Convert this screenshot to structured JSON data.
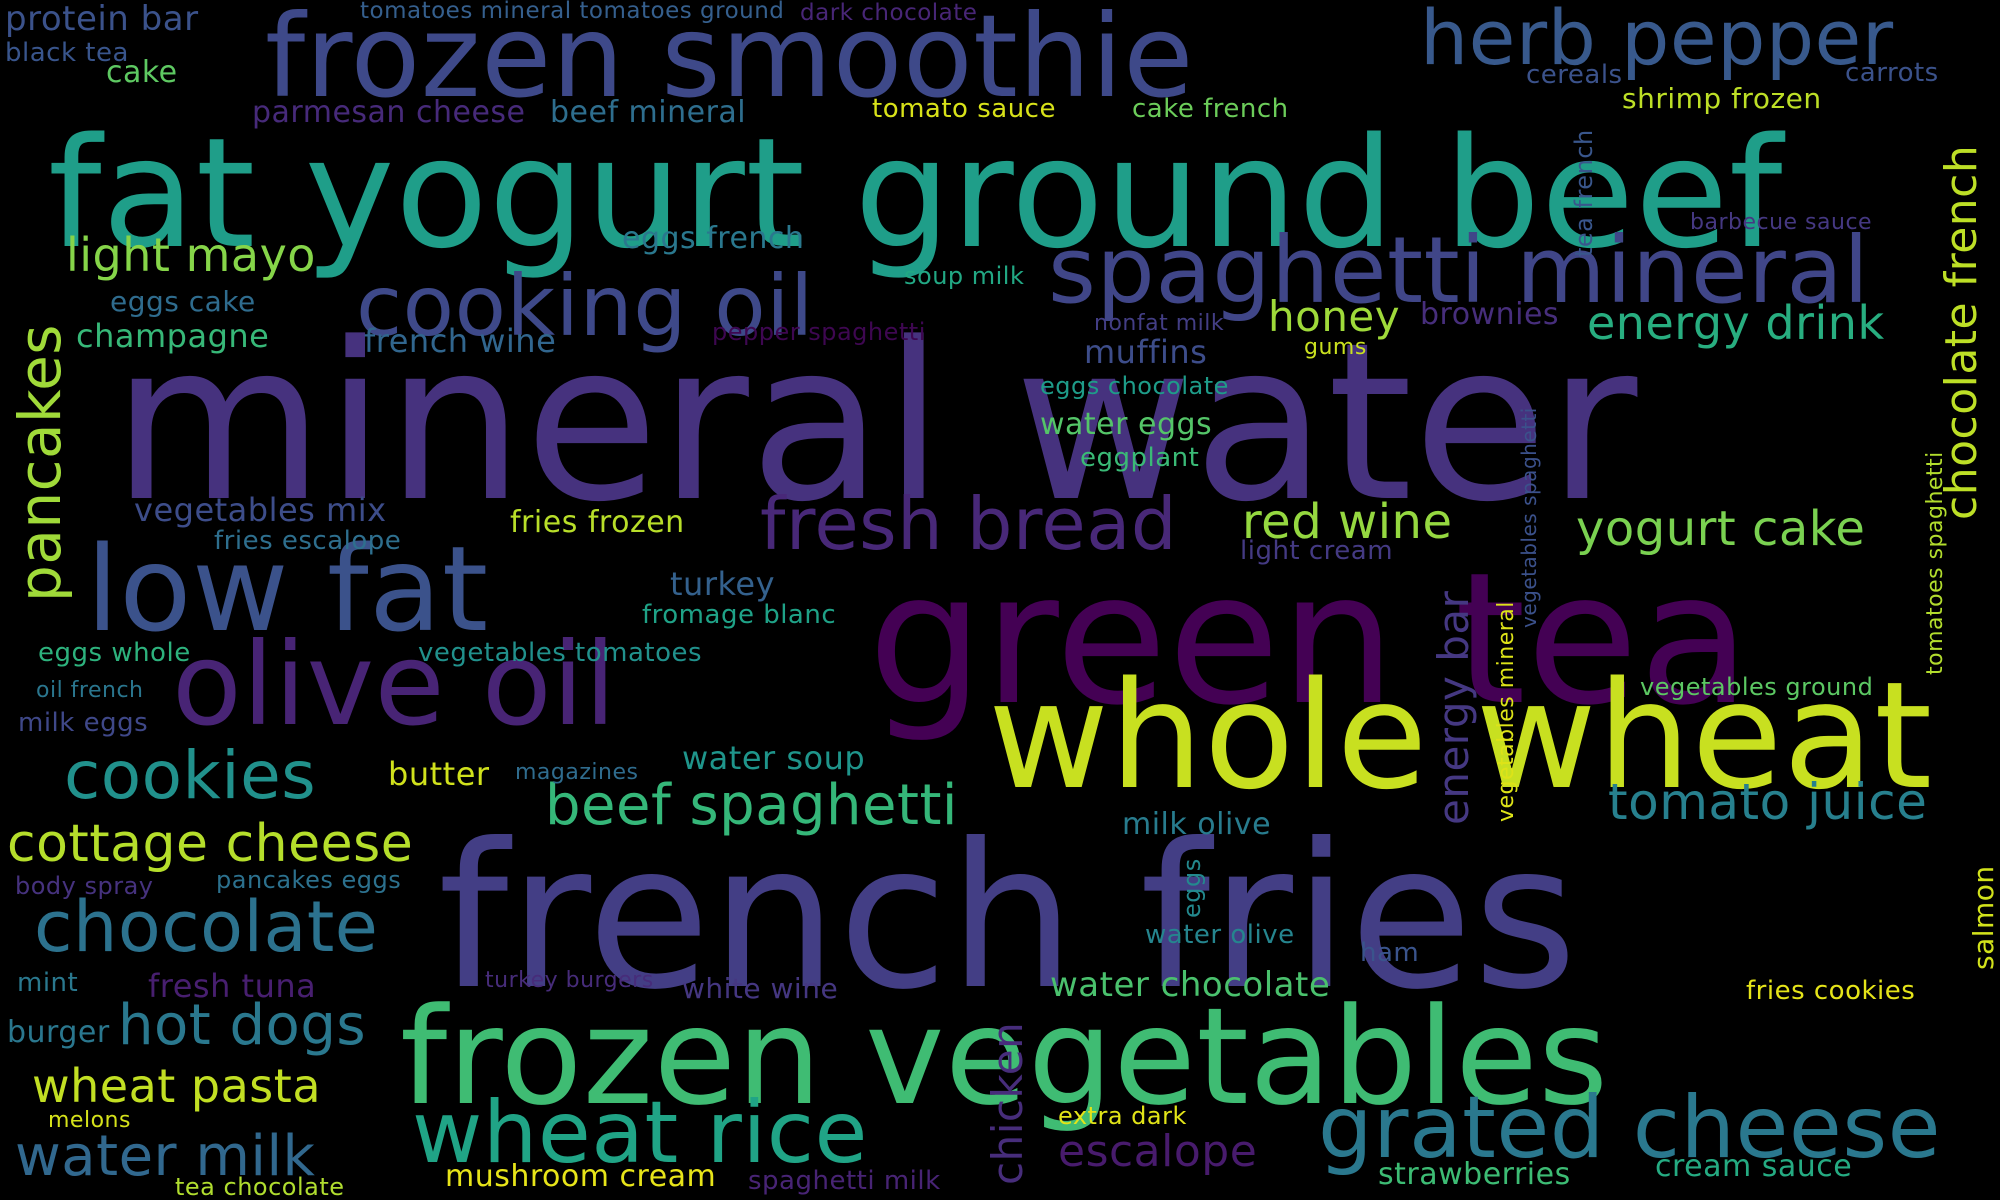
{
  "palette": {
    "background": "#000000"
  },
  "words": [
    {
      "text": "mineral water",
      "color": "#46327e"
    },
    {
      "text": "french fries",
      "color": "#433e85"
    },
    {
      "text": "green tea",
      "color": "#440154"
    },
    {
      "text": "frozen vegetables",
      "color": "#3fbc73"
    },
    {
      "text": "whole wheat",
      "color": "#c8e020"
    },
    {
      "text": "fat yogurt ground beef",
      "color": "#1f9e89"
    },
    {
      "text": "frozen smoothie",
      "color": "#3e4989"
    },
    {
      "text": "low fat",
      "color": "#3b528b"
    },
    {
      "text": "olive oil",
      "color": "#482475"
    },
    {
      "text": "spaghetti mineral",
      "color": "#404688"
    },
    {
      "text": "cooking oil",
      "color": "#3e4989"
    },
    {
      "text": "wheat rice",
      "color": "#20a486"
    },
    {
      "text": "grated cheese",
      "color": "#2a788e"
    },
    {
      "text": "herb pepper",
      "color": "#38598c"
    },
    {
      "text": "fresh bread",
      "color": "#482878"
    },
    {
      "text": "chocolate",
      "color": "#2c728e"
    },
    {
      "text": "cookies",
      "color": "#21918c"
    },
    {
      "text": "beef spaghetti",
      "color": "#35b779"
    },
    {
      "text": "cottage cheese",
      "color": "#b5de2b"
    },
    {
      "text": "hot dogs",
      "color": "#2a788e"
    },
    {
      "text": "tomato juice",
      "color": "#27808e"
    },
    {
      "text": "yogurt cake",
      "color": "#7ad151"
    },
    {
      "text": "red wine",
      "color": "#95d840"
    },
    {
      "text": "wheat pasta",
      "color": "#c2df23"
    },
    {
      "text": "water milk",
      "color": "#31688e"
    },
    {
      "text": "light mayo",
      "color": "#86d549"
    },
    {
      "text": "energy drink",
      "color": "#28ae80"
    },
    {
      "text": "escalope",
      "color": "#481b6d"
    },
    {
      "text": "honey",
      "color": "#9fda3a"
    },
    {
      "text": "pancakes",
      "color": "#a0da39"
    },
    {
      "text": "chocolate french",
      "color": "#bddf26"
    },
    {
      "text": "chicken",
      "color": "#472d7b"
    },
    {
      "text": "energy bar",
      "color": "#453882"
    },
    {
      "text": "protein bar",
      "color": "#3b528b"
    },
    {
      "text": "black tea",
      "color": "#39558c"
    },
    {
      "text": "cake",
      "color": "#5ec962"
    },
    {
      "text": "tomatoes mineral tomatoes ground",
      "color": "#355f8d"
    },
    {
      "text": "dark chocolate",
      "color": "#482677"
    },
    {
      "text": "parmesan cheese",
      "color": "#472a7a"
    },
    {
      "text": "beef mineral",
      "color": "#2e6e8e"
    },
    {
      "text": "tomato sauce",
      "color": "#d8e219"
    },
    {
      "text": "cake french",
      "color": "#6ccd5a"
    },
    {
      "text": "cereals",
      "color": "#3b528b"
    },
    {
      "text": "carrots",
      "color": "#3b528b"
    },
    {
      "text": "shrimp frozen",
      "color": "#bddf26"
    },
    {
      "text": "eggs french",
      "color": "#2a788e"
    },
    {
      "text": "barbecue sauce",
      "color": "#453882"
    },
    {
      "text": "eggs cake",
      "color": "#2f6c8e"
    },
    {
      "text": "soup milk",
      "color": "#22a884"
    },
    {
      "text": "champagne",
      "color": "#37b878"
    },
    {
      "text": "french wine",
      "color": "#31668e"
    },
    {
      "text": "pepper spaghetti",
      "color": "#3e0751"
    },
    {
      "text": "nonfat milk",
      "color": "#433e85"
    },
    {
      "text": "muffins",
      "color": "#3d4d8a"
    },
    {
      "text": "brownies",
      "color": "#472e7c"
    },
    {
      "text": "gums",
      "color": "#cae11f"
    },
    {
      "text": "eggs chocolate",
      "color": "#1e9c89"
    },
    {
      "text": "water eggs",
      "color": "#54c568"
    },
    {
      "text": "eggplant",
      "color": "#3aba76"
    },
    {
      "text": "vegetables mix",
      "color": "#3d4d8a"
    },
    {
      "text": "fries frozen",
      "color": "#b8de29"
    },
    {
      "text": "fries escalope",
      "color": "#2e6f8e"
    },
    {
      "text": "light cream",
      "color": "#443a83"
    },
    {
      "text": "turkey",
      "color": "#34618d"
    },
    {
      "text": "fromage blanc",
      "color": "#1fa287"
    },
    {
      "text": "eggs whole",
      "color": "#2db27d"
    },
    {
      "text": "vegetables tomatoes",
      "color": "#21918c"
    },
    {
      "text": "oil french",
      "color": "#2a768e"
    },
    {
      "text": "vegetables ground",
      "color": "#5cc863"
    },
    {
      "text": "milk eggs",
      "color": "#3f4889"
    },
    {
      "text": "butter",
      "color": "#d0e11c"
    },
    {
      "text": "magazines",
      "color": "#2f6c8e"
    },
    {
      "text": "water soup",
      "color": "#1f958b"
    },
    {
      "text": "milk olive",
      "color": "#287c8e"
    },
    {
      "text": "body spray",
      "color": "#46327e"
    },
    {
      "text": "pancakes eggs",
      "color": "#2c718e"
    },
    {
      "text": "eggs",
      "color": "#23898e"
    },
    {
      "text": "water olive",
      "color": "#25858e"
    },
    {
      "text": "ham",
      "color": "#3a548c"
    },
    {
      "text": "mint",
      "color": "#2a788e"
    },
    {
      "text": "fresh tuna",
      "color": "#481f70"
    },
    {
      "text": "turkey burgers",
      "color": "#472c7a"
    },
    {
      "text": "white wine",
      "color": "#453781"
    },
    {
      "text": "water chocolate",
      "color": "#4ac16d"
    },
    {
      "text": "fries cookies",
      "color": "#e5e419"
    },
    {
      "text": "salmon",
      "color": "#d2e21b"
    },
    {
      "text": "burger",
      "color": "#2a778e"
    },
    {
      "text": "melons",
      "color": "#d5e21a"
    },
    {
      "text": "extra dark",
      "color": "#e2e418"
    },
    {
      "text": "tea chocolate",
      "color": "#b0dd2f"
    },
    {
      "text": "mushroom cream",
      "color": "#e7e419"
    },
    {
      "text": "spaghetti milk",
      "color": "#482475"
    },
    {
      "text": "strawberries",
      "color": "#3dbc74"
    },
    {
      "text": "cream sauce",
      "color": "#25ab82"
    },
    {
      "text": "tea french",
      "color": "#39568c"
    },
    {
      "text": "vegetables spaghetti",
      "color": "#3b518b"
    },
    {
      "text": "vegetables mineral",
      "color": "#dde318"
    },
    {
      "text": "tomatoes spaghetti",
      "color": "#b2dd2d"
    }
  ]
}
